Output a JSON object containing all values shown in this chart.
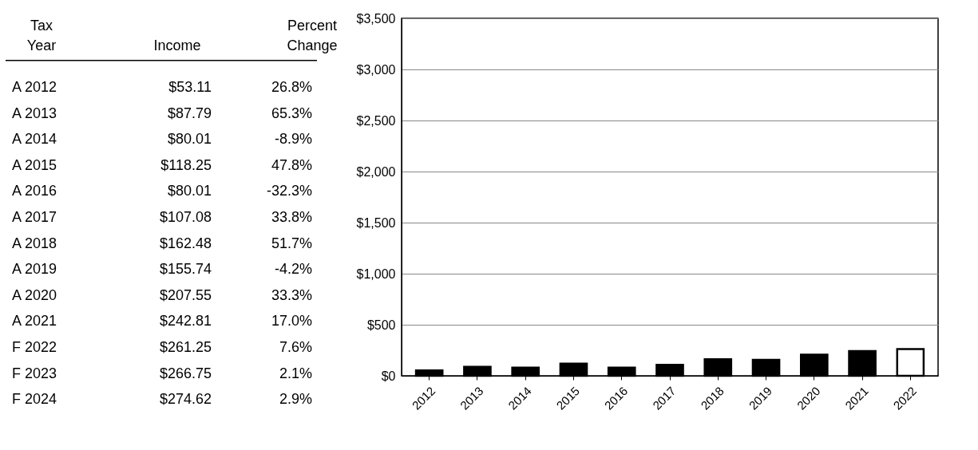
{
  "chart_data": [
    {
      "type": "other",
      "xlabel": "Tax Year",
      "categories": [
        "A 2012",
        "A 2013",
        "A 2014",
        "A 2015",
        "A 2016",
        "A 2017",
        "A 2018",
        "A 2019",
        "A 2020",
        "A 2021",
        "F 2022",
        "F 2023",
        "F 2024"
      ],
      "series": [
        {
          "name": "Income",
          "values": [
            53.11,
            87.79,
            80.01,
            118.25,
            80.01,
            107.08,
            162.48,
            155.74,
            207.55,
            242.81,
            261.25,
            266.75,
            274.62
          ],
          "value_labels": [
            "$53.11",
            "$87.79",
            "$80.01",
            "$118.25",
            "$80.01",
            "$107.08",
            "$162.48",
            "$155.74",
            "$207.55",
            "$242.81",
            "$261.25",
            "$266.75",
            "$274.62"
          ]
        },
        {
          "name": "Percent Change",
          "values": [
            26.8,
            65.3,
            -8.9,
            47.8,
            -32.3,
            33.8,
            51.7,
            -4.2,
            33.3,
            17.0,
            7.6,
            2.1,
            2.9
          ],
          "value_labels": [
            "26.8%",
            "65.3%",
            "-8.9%",
            "47.8%",
            "-32.3%",
            "33.8%",
            "51.7%",
            "-4.2%",
            "33.3%",
            "17.0%",
            "7.6%",
            "2.1%",
            "2.9%"
          ]
        }
      ]
    },
    {
      "type": "bar",
      "categories": [
        "2012",
        "2013",
        "2014",
        "2015",
        "2016",
        "2017",
        "2018",
        "2019",
        "2020",
        "2021",
        "2022"
      ],
      "values": [
        53.11,
        87.79,
        80.01,
        118.25,
        80.01,
        107.08,
        162.48,
        155.74,
        207.55,
        242.81,
        261.25
      ],
      "colors": [
        "#000000",
        "#000000",
        "#000000",
        "#000000",
        "#000000",
        "#000000",
        "#000000",
        "#000000",
        "#000000",
        "#000000",
        "#ffffff"
      ],
      "ylim": [
        0,
        3500
      ],
      "yticks": [
        {
          "value": 0,
          "label": "$0"
        },
        {
          "value": 500,
          "label": "$500"
        },
        {
          "value": 1000,
          "label": "$1,000"
        },
        {
          "value": 1500,
          "label": "$1,500"
        },
        {
          "value": 2000,
          "label": "$2,000"
        },
        {
          "value": 2500,
          "label": "$2,500"
        },
        {
          "value": 3000,
          "label": "$3,000"
        },
        {
          "value": 3500,
          "label": "$3,500"
        }
      ],
      "grid": "y"
    }
  ]
}
